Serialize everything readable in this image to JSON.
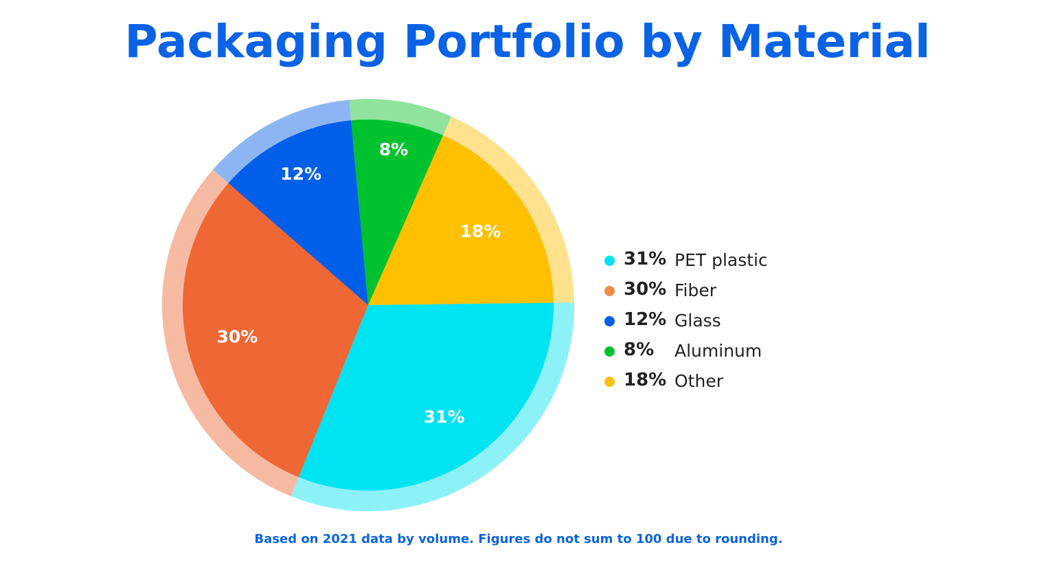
{
  "title": "Packaging Portfolio by Material",
  "footnote": "Based on 2021 data by volume. Figures do not sum to 100 due to rounding.",
  "chart_data": {
    "type": "pie",
    "title": "Packaging Portfolio by Material",
    "slices": [
      {
        "name": "PET plastic",
        "value": 31,
        "label": "31%",
        "color": "#00e3f2",
        "ring_color": "#8df1f8"
      },
      {
        "name": "Fiber",
        "value": 30,
        "label": "30%",
        "color": "#ef6735",
        "ring_color": "#f6baa3"
      },
      {
        "name": "Glass",
        "value": 12,
        "label": "12%",
        "color": "#005fe8",
        "ring_color": "#8cb6f3"
      },
      {
        "name": "Aluminum",
        "value": 8,
        "label": "8%",
        "color": "#00c22f",
        "ring_color": "#8fe39c"
      },
      {
        "name": "Other",
        "value": 18,
        "label": "18%",
        "color": "#ffc000",
        "ring_color": "#ffe18e"
      }
    ],
    "legend_position": "right"
  },
  "legend": [
    {
      "pct": "31%",
      "name": "PET plastic",
      "color": "#00e3f2"
    },
    {
      "pct": "30%",
      "name": "Fiber",
      "color": "#f08c45"
    },
    {
      "pct": "12%",
      "name": "Glass",
      "color": "#005fe8"
    },
    {
      "pct": "8%",
      "name": "Aluminum",
      "color": "#00c22f"
    },
    {
      "pct": "18%",
      "name": "Other",
      "color": "#ffc000"
    }
  ]
}
